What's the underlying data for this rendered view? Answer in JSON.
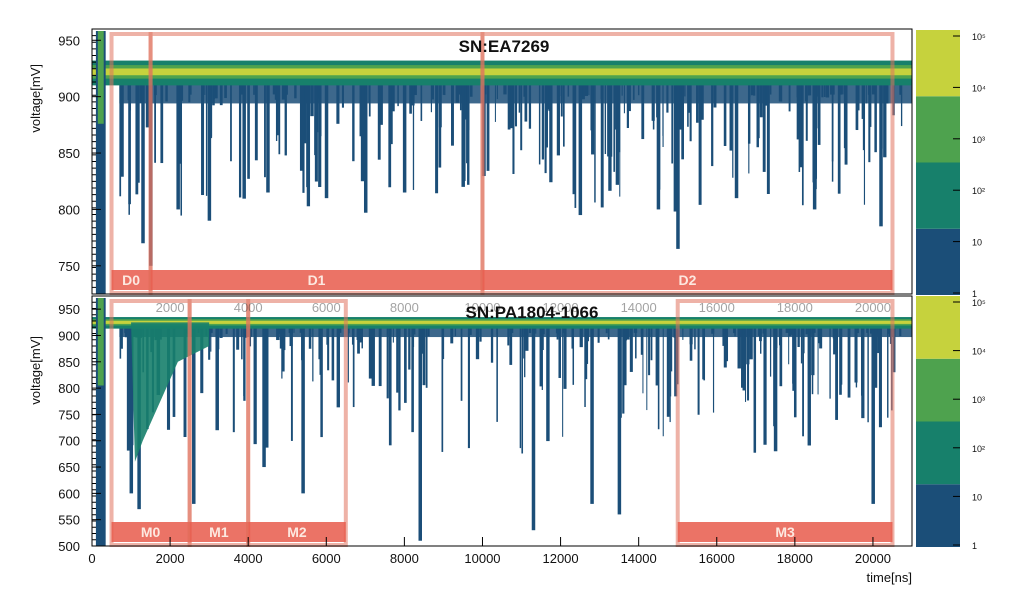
{
  "chart_data": [
    {
      "type": "heatmap",
      "title": "SN:EA7269",
      "xlabel": "",
      "ylabel": "voltage[mV]",
      "xlim": [
        0,
        21000
      ],
      "ylim": [
        725,
        960
      ],
      "yticks": [
        750,
        800,
        850,
        900,
        950
      ],
      "baseline_mV": 922,
      "colorbar": {
        "scale": "log",
        "labels": [
          "1",
          "10",
          "10²",
          "10³",
          "10⁴",
          "10⁵"
        ]
      },
      "regions": [
        {
          "label": "D0",
          "x": [
            500,
            1500
          ]
        },
        {
          "label": "D1",
          "x": [
            1500,
            10000
          ]
        },
        {
          "label": "D2",
          "x": [
            10000,
            20500
          ]
        }
      ],
      "dips": [
        {
          "x": 1300,
          "min_mV": 770
        },
        {
          "x": 1500,
          "min_mV": 750
        },
        {
          "x": 2200,
          "min_mV": 800
        },
        {
          "x": 3000,
          "min_mV": 790
        },
        {
          "x": 4500,
          "min_mV": 815
        },
        {
          "x": 6000,
          "min_mV": 810
        },
        {
          "x": 8000,
          "min_mV": 815
        },
        {
          "x": 9500,
          "min_mV": 820
        },
        {
          "x": 12500,
          "min_mV": 795
        },
        {
          "x": 14500,
          "min_mV": 800
        },
        {
          "x": 15000,
          "min_mV": 765
        },
        {
          "x": 16500,
          "min_mV": 810
        },
        {
          "x": 18500,
          "min_mV": 800
        },
        {
          "x": 20200,
          "min_mV": 785
        }
      ]
    },
    {
      "type": "heatmap",
      "title": "SN:PA1804-1066",
      "xlabel": "time[ns]",
      "ylabel": "voltage[mV]",
      "xlim": [
        0,
        21000
      ],
      "ylim": [
        500,
        975
      ],
      "xticks": [
        0,
        2000,
        4000,
        6000,
        8000,
        10000,
        12000,
        14000,
        16000,
        18000,
        20000
      ],
      "yticks": [
        500,
        550,
        600,
        650,
        700,
        750,
        800,
        850,
        900,
        950
      ],
      "baseline_mV": 925,
      "colorbar": {
        "scale": "log",
        "labels": [
          "1",
          "10",
          "10²",
          "10³",
          "10⁴",
          "10⁵"
        ]
      },
      "regions": [
        {
          "label": "M0",
          "x": [
            500,
            2500
          ]
        },
        {
          "label": "M1",
          "x": [
            2500,
            4000
          ]
        },
        {
          "label": "M2",
          "x": [
            4000,
            6500
          ]
        },
        {
          "label": "M3",
          "x": [
            15000,
            20500
          ]
        }
      ],
      "ghost_tick_labels": [
        "2000",
        "4000",
        "6000",
        "8000",
        "10000",
        "12000",
        "14000",
        "16000",
        "18000",
        "20000"
      ],
      "dips": [
        {
          "x": 1000,
          "min_mV": 600
        },
        {
          "x": 1200,
          "min_mV": 570
        },
        {
          "x": 2600,
          "min_mV": 580
        },
        {
          "x": 3200,
          "min_mV": 720
        },
        {
          "x": 4400,
          "min_mV": 650
        },
        {
          "x": 5400,
          "min_mV": 600
        },
        {
          "x": 8400,
          "min_mV": 510
        },
        {
          "x": 11300,
          "min_mV": 530
        },
        {
          "x": 12800,
          "min_mV": 580
        },
        {
          "x": 13500,
          "min_mV": 560
        },
        {
          "x": 17500,
          "min_mV": 680
        },
        {
          "x": 20000,
          "min_mV": 580
        }
      ]
    }
  ],
  "colors": {
    "dark_blue": "#1b4e78",
    "teal": "#17806b",
    "green": "#4ea24e",
    "yellow_green": "#c6d23d",
    "region_line": "#e0725e",
    "region_band": "#e85a4b",
    "region_label": "#fde8e0"
  }
}
